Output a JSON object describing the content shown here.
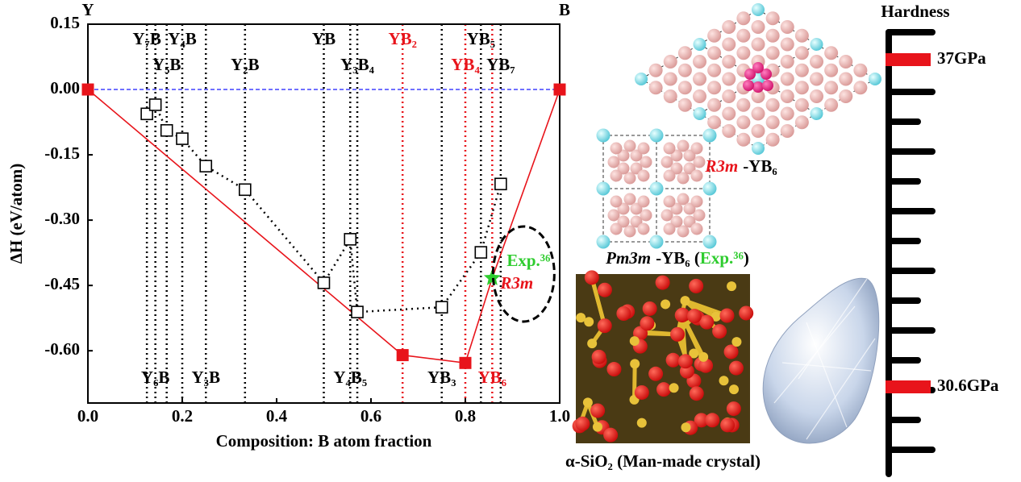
{
  "chart_data": {
    "type": "scatter",
    "corner_labels": [
      "Y",
      "B"
    ],
    "xlabel": "Composition: B atom fraction",
    "ylabel": "ΔH (eV/atom)",
    "xlim": [
      0,
      1
    ],
    "xticks": [
      {
        "value": 0,
        "label": "0.0"
      },
      0.2,
      0.4,
      0.6,
      0.8,
      {
        "value": 1,
        "label": "1.0"
      }
    ],
    "ylim": [
      -0.72,
      0.15
    ],
    "yticks": [
      0.15,
      {
        "value": 0,
        "label": "0.00"
      },
      -0.15,
      {
        "value": -0.3,
        "label": "-0.30"
      },
      -0.45,
      {
        "value": -0.6,
        "label": "-0.60"
      }
    ],
    "reference_line": {
      "value": 0,
      "color": "#1a1aff",
      "style": "dashed"
    },
    "series": [
      {
        "marker": "square-open",
        "line": "dotted",
        "color": "#000000",
        "x": [
          0.125,
          0.143,
          0.167,
          0.2,
          0.25,
          0.333,
          0.5,
          0.556,
          0.571,
          0.75,
          0.833,
          0.875
        ],
        "values": [
          -0.056,
          -0.035,
          -0.094,
          -0.113,
          -0.176,
          -0.23,
          -0.444,
          -0.344,
          -0.511,
          -0.5,
          -0.374,
          -0.217
        ]
      },
      {
        "marker": "square",
        "line": "solid",
        "color": "#e8141b",
        "x": [
          0,
          0.667,
          0.8,
          0.857,
          1
        ],
        "values": [
          0,
          -0.61,
          -0.628,
          -0.433,
          0
        ],
        "markers": [
          "square",
          "square",
          "square",
          "star",
          "square"
        ],
        "marker_colors": [
          "#e8141b",
          "#e8141b",
          "#e8141b",
          "#2ecc2e",
          "#e8141b"
        ]
      }
    ],
    "phases": [
      {
        "label": "Y₇B",
        "x": 0.125,
        "color": "#000000",
        "row": "top"
      },
      {
        "label": "Y₆B",
        "x": 0.143,
        "color": "#000000",
        "row": "bottom"
      },
      {
        "label": "Y₅B",
        "x": 0.167,
        "color": "#000000",
        "row": "top2"
      },
      {
        "label": "Y₄B",
        "x": 0.2,
        "color": "#000000",
        "row": "top"
      },
      {
        "label": "Y₃B",
        "x": 0.25,
        "color": "#000000",
        "row": "bottom"
      },
      {
        "label": "Y₂B",
        "x": 0.333,
        "color": "#000000",
        "row": "top2"
      },
      {
        "label": "YB",
        "x": 0.5,
        "color": "#000000",
        "row": "top"
      },
      {
        "label": "Y₄B₅",
        "x": 0.556,
        "color": "#000000",
        "row": "bottom"
      },
      {
        "label": "Y₃B₄",
        "x": 0.571,
        "color": "#000000",
        "row": "top2"
      },
      {
        "label": "YB₂",
        "x": 0.667,
        "color": "#e8141b",
        "row": "top"
      },
      {
        "label": "YB₃",
        "x": 0.75,
        "color": "#000000",
        "row": "bottom"
      },
      {
        "label": "YB₄",
        "x": 0.8,
        "color": "#e8141b",
        "row": "top2"
      },
      {
        "label": "YB₅",
        "x": 0.833,
        "color": "#000000",
        "row": "top"
      },
      {
        "label": "YB₆",
        "x": 0.857,
        "color": "#e8141b",
        "row": "bottom"
      },
      {
        "label": "YB₇",
        "x": 0.875,
        "color": "#000000",
        "row": "top2"
      }
    ],
    "annotations": [
      {
        "text": "Exp.³⁶",
        "color": "#2ecc2e"
      },
      {
        "text": "R3m",
        "color": "#e8141b",
        "italic": true
      }
    ]
  },
  "structures": {
    "r3m_label": {
      "name": "R3m",
      "formula": "-YB₆"
    },
    "pm3m_label": {
      "name": "Pm3m",
      "formula": "-YB₆ (",
      "note": "Exp.³⁶",
      "close": ")"
    },
    "sio2_label": "α-SiO₂ (Man-made crystal)"
  },
  "hardness": {
    "title": "Hardness",
    "color": "#e8141b",
    "markers": [
      {
        "value": 37,
        "label": "37GPa"
      },
      {
        "value": 30.6,
        "label": "30.6GPa"
      }
    ]
  }
}
